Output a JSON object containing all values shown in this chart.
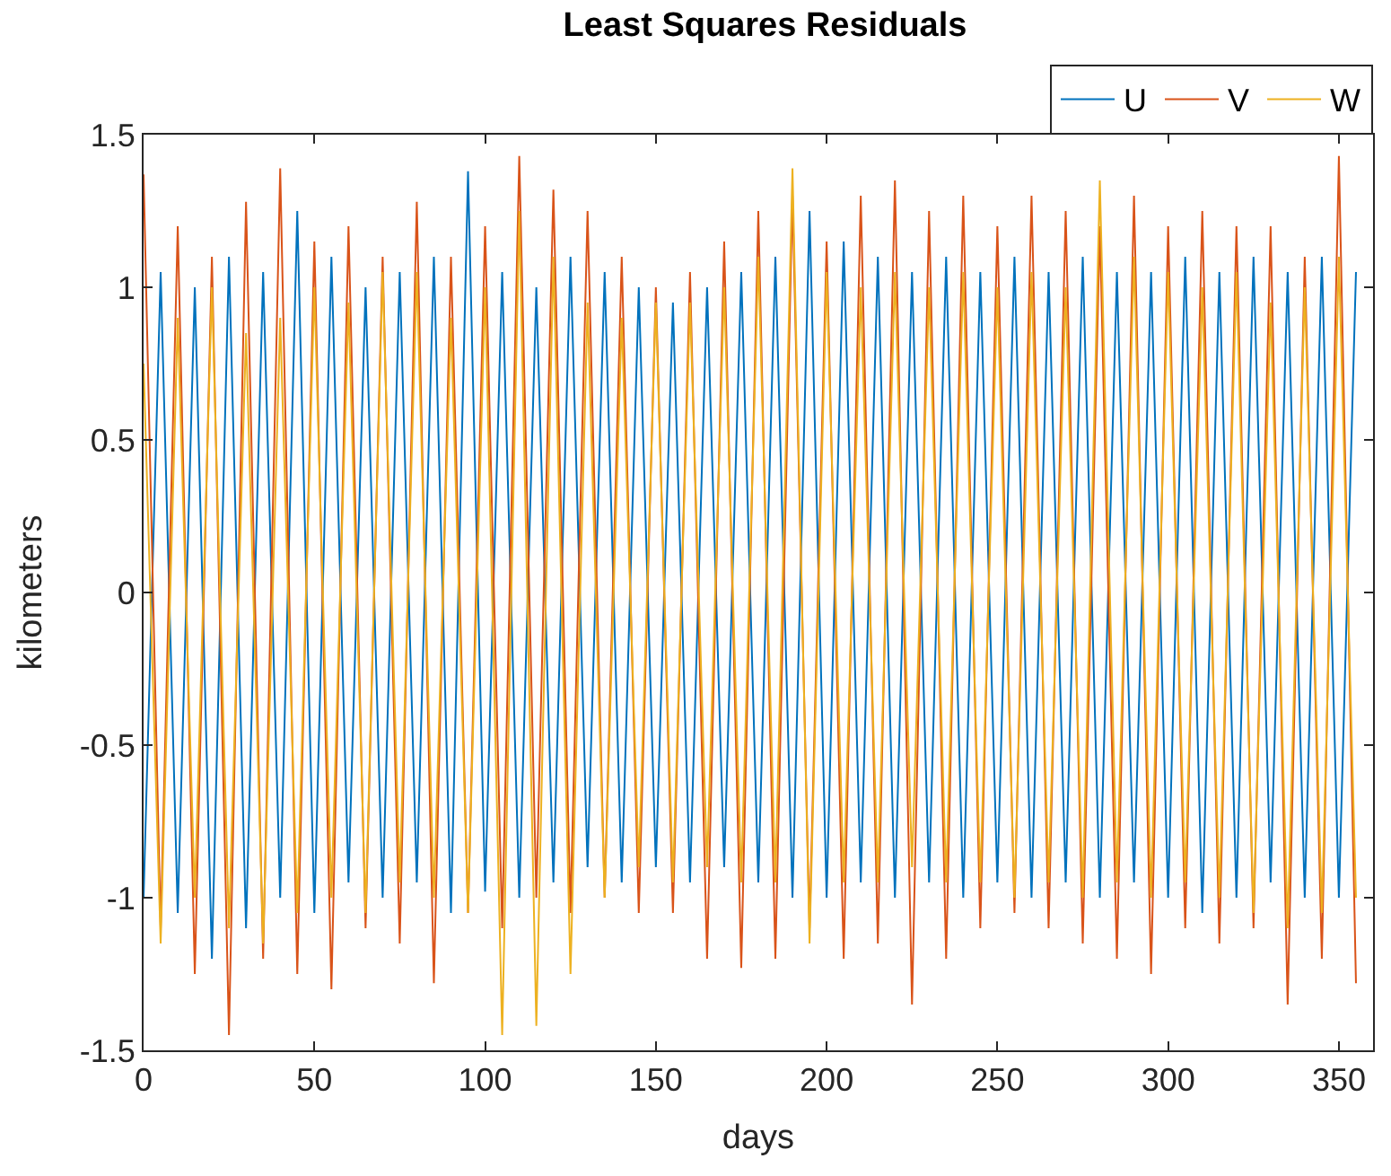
{
  "chart_data": {
    "type": "line",
    "title": "Least Squares Residuals",
    "xlabel": "days",
    "ylabel": "kilometers",
    "x": [
      0,
      5,
      10,
      15,
      20,
      25,
      30,
      35,
      40,
      45,
      50,
      55,
      60,
      65,
      70,
      75,
      80,
      85,
      90,
      95,
      100,
      105,
      110,
      115,
      120,
      125,
      130,
      135,
      140,
      145,
      150,
      155,
      160,
      165,
      170,
      175,
      180,
      185,
      190,
      195,
      200,
      205,
      210,
      215,
      220,
      225,
      230,
      235,
      240,
      245,
      250,
      255,
      260,
      265,
      270,
      275,
      280,
      285,
      290,
      295,
      300,
      305,
      310,
      315,
      320,
      325,
      330,
      335,
      340,
      345,
      350,
      355
    ],
    "series": [
      {
        "name": "U",
        "color": "#0072bd",
        "values": [
          -1.0,
          1.05,
          -1.05,
          1.0,
          -1.2,
          1.1,
          -1.1,
          1.05,
          -1.0,
          1.25,
          -1.05,
          1.1,
          -0.95,
          1.0,
          -1.0,
          1.05,
          -0.95,
          1.1,
          -1.05,
          1.38,
          -0.98,
          1.05,
          -1.0,
          1.0,
          -0.95,
          1.1,
          -0.9,
          1.05,
          -0.95,
          1.0,
          -0.9,
          0.95,
          -0.95,
          1.0,
          -0.9,
          1.05,
          -0.95,
          1.1,
          -1.0,
          1.25,
          -1.0,
          1.15,
          -0.95,
          1.1,
          -1.0,
          1.05,
          -0.95,
          1.1,
          -1.0,
          1.05,
          -0.95,
          1.1,
          -1.0,
          1.05,
          -0.95,
          1.1,
          -1.0,
          1.05,
          -0.95,
          1.05,
          -1.0,
          1.1,
          -1.05,
          1.05,
          -1.0,
          1.1,
          -0.95,
          1.05,
          -1.0,
          1.1,
          -1.0,
          1.05
        ]
      },
      {
        "name": "V",
        "color": "#d95319",
        "values": [
          1.37,
          -1.1,
          1.2,
          -1.25,
          1.1,
          -1.45,
          1.28,
          -1.2,
          1.39,
          -1.25,
          1.15,
          -1.3,
          1.2,
          -1.1,
          1.1,
          -1.15,
          1.28,
          -1.28,
          1.1,
          -1.05,
          1.2,
          -1.1,
          1.43,
          -1.0,
          1.32,
          -1.05,
          1.25,
          -1.0,
          1.1,
          -1.05,
          1.0,
          -1.05,
          1.05,
          -1.2,
          1.15,
          -1.23,
          1.25,
          -1.2,
          1.3,
          -1.1,
          1.15,
          -1.2,
          1.3,
          -1.15,
          1.35,
          -1.35,
          1.25,
          -1.2,
          1.3,
          -1.1,
          1.2,
          -1.05,
          1.3,
          -1.1,
          1.25,
          -1.15,
          1.2,
          -1.2,
          1.3,
          -1.25,
          1.2,
          -1.1,
          1.25,
          -1.15,
          1.2,
          -1.1,
          1.2,
          -1.35,
          1.1,
          -1.2,
          1.43,
          -1.28
        ]
      },
      {
        "name": "W",
        "color": "#edb120",
        "values": [
          0.75,
          -1.15,
          0.9,
          -1.0,
          1.0,
          -1.1,
          0.85,
          -1.15,
          0.9,
          -1.05,
          1.0,
          -1.0,
          0.95,
          -1.05,
          1.05,
          -0.95,
          1.05,
          -1.0,
          0.9,
          -1.05,
          1.0,
          -1.45,
          1.25,
          -1.42,
          1.1,
          -1.25,
          0.95,
          -1.0,
          0.9,
          -0.9,
          0.95,
          -0.95,
          0.95,
          -0.9,
          1.0,
          -0.95,
          1.1,
          -0.95,
          1.39,
          -1.15,
          1.05,
          -0.95,
          1.0,
          -0.95,
          1.05,
          -0.9,
          1.0,
          -0.95,
          1.05,
          -0.95,
          1.0,
          -1.0,
          1.05,
          -0.95,
          1.0,
          -1.0,
          1.35,
          -0.95,
          1.1,
          -1.0,
          1.05,
          -0.95,
          1.0,
          -1.0,
          1.05,
          -1.05,
          0.95,
          -1.1,
          1.0,
          -1.05,
          1.1,
          -1.0
        ]
      }
    ],
    "xlim": [
      0,
      360
    ],
    "xticks": [
      0,
      50,
      100,
      150,
      200,
      250,
      300,
      350
    ],
    "ylim": [
      -1.5,
      1.5
    ],
    "yticks": [
      -1.5,
      -1,
      -0.5,
      0,
      0.5,
      1,
      1.5
    ],
    "legend": "top right",
    "marker": "none",
    "line_style": "solid"
  }
}
